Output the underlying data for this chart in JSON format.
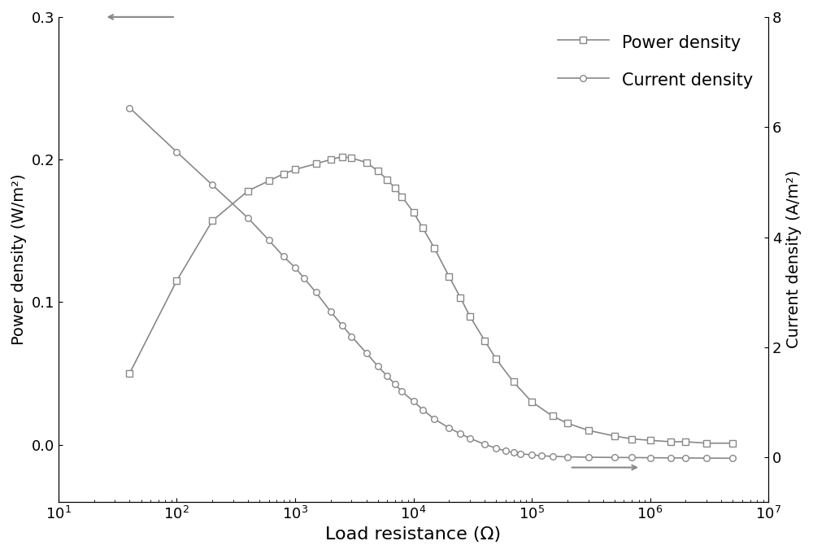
{
  "title": "",
  "xlabel": "Load resistance (Ω)",
  "ylabel_left": "Power density (W/m²)",
  "ylabel_right": "Current density (A/m²)",
  "xlim": [
    10,
    10000000.0
  ],
  "ylim_left": [
    -0.04,
    0.3
  ],
  "ylim_right": [
    -0.8,
    6.0
  ],
  "yticks_left": [
    0.0,
    0.1,
    0.2,
    0.3
  ],
  "yticks_right": [
    0,
    2,
    4,
    6,
    8
  ],
  "color": "#888888",
  "power_density": {
    "R": [
      40,
      100,
      200,
      400,
      600,
      800,
      1000,
      1500,
      2000,
      2500,
      3000,
      4000,
      5000,
      6000,
      7000,
      8000,
      10000,
      12000,
      15000,
      20000,
      25000,
      30000,
      40000,
      50000,
      70000,
      100000,
      150000,
      200000,
      300000,
      500000,
      700000,
      1000000,
      1500000,
      2000000,
      3000000,
      5000000
    ],
    "P": [
      0.05,
      0.115,
      0.157,
      0.178,
      0.185,
      0.19,
      0.193,
      0.197,
      0.2,
      0.202,
      0.201,
      0.198,
      0.192,
      0.186,
      0.18,
      0.174,
      0.163,
      0.152,
      0.138,
      0.118,
      0.103,
      0.09,
      0.073,
      0.06,
      0.044,
      0.03,
      0.02,
      0.015,
      0.01,
      0.006,
      0.004,
      0.003,
      0.002,
      0.002,
      0.001,
      0.001
    ]
  },
  "current_density": {
    "R": [
      40,
      100,
      200,
      400,
      600,
      800,
      1000,
      1200,
      1500,
      2000,
      2500,
      3000,
      4000,
      5000,
      6000,
      7000,
      8000,
      10000,
      12000,
      15000,
      20000,
      25000,
      30000,
      40000,
      50000,
      60000,
      70000,
      80000,
      100000,
      120000,
      150000,
      200000,
      300000,
      500000,
      700000,
      1000000,
      1500000,
      2000000,
      3000000,
      5000000
    ],
    "J": [
      6.35,
      5.55,
      4.95,
      4.35,
      3.95,
      3.65,
      3.45,
      3.25,
      3.0,
      2.65,
      2.4,
      2.2,
      1.9,
      1.66,
      1.48,
      1.33,
      1.2,
      1.02,
      0.87,
      0.7,
      0.54,
      0.43,
      0.35,
      0.24,
      0.17,
      0.12,
      0.09,
      0.07,
      0.048,
      0.033,
      0.022,
      0.013,
      0.006,
      0.002,
      0.0,
      -0.003,
      -0.006,
      -0.008,
      -0.01,
      -0.013
    ]
  },
  "legend_power": "Power density",
  "legend_current": "Current density"
}
